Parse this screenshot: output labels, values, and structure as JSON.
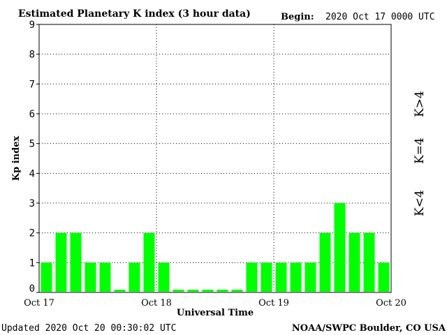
{
  "header": {
    "title": "Estimated Planetary K index (3 hour data)",
    "begin_label": "Begin:",
    "begin_value": "2020 Oct 17 0000 UTC"
  },
  "footer": {
    "updated": "Updated 2020 Oct 20 00:30:02 UTC",
    "source": "NOAA/SWPC Boulder, CO USA"
  },
  "legend": {
    "k_greater": "K>4",
    "k_equal": "K=4",
    "k_less": "K<4"
  },
  "colors": {
    "below_4": "#00ff00",
    "equal_4": "#ffd700",
    "above_4": "#ff3300"
  },
  "chart_data": {
    "type": "bar",
    "title": "Estimated Planetary K index (3 hour data)",
    "xlabel": "Universal Time",
    "ylabel": "Kp index",
    "ylim": [
      0,
      9
    ],
    "yticks": [
      "0",
      "1",
      "2",
      "3",
      "4",
      "5",
      "6",
      "7",
      "8",
      "9"
    ],
    "xtick_labels": [
      "Oct 17",
      "Oct 18",
      "Oct 19",
      "Oct 20"
    ],
    "grid": true,
    "values": [
      1,
      2,
      2,
      1,
      1,
      0,
      1,
      2,
      1,
      0,
      0,
      0,
      0,
      0,
      1,
      1,
      1,
      1,
      1,
      2,
      3,
      2,
      2,
      1
    ]
  }
}
